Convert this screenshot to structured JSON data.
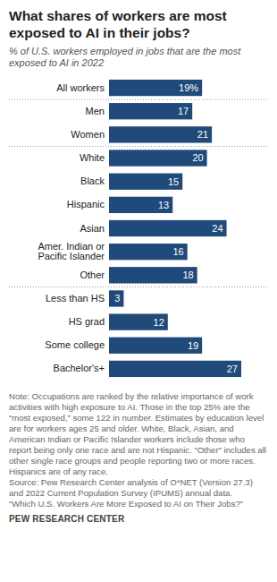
{
  "chart_data": {
    "type": "bar",
    "orientation": "horizontal",
    "title": "What shares of workers are most exposed to AI in their jobs?",
    "subtitle": "% of U.S. workers employed in jobs that are the most exposed to AI in 2022",
    "categories": [
      "All workers",
      "Men",
      "Women",
      "White",
      "Black",
      "Hispanic",
      "Asian",
      "Amer. Indian or\nPacific Islander",
      "Other",
      "Less than HS",
      "HS grad",
      "Some college",
      "Bachelor's+"
    ],
    "values": [
      19,
      17,
      21,
      20,
      15,
      13,
      24,
      16,
      18,
      3,
      12,
      19,
      27
    ],
    "value_labels": [
      "19%",
      "17",
      "21",
      "20",
      "15",
      "13",
      "24",
      "16",
      "18",
      "3",
      "12",
      "19",
      "27"
    ],
    "color": "#1f4a7a",
    "xlim": [
      0,
      27
    ],
    "data_labels": true,
    "tick_labels": "y",
    "note": "Note: Occupations are ranked by the relative importance of work activities with high exposure to AI. Those in the top 25% are the “most exposed,” some 122 in number. Estimates by education level are for workers ages 25 and older. White, Black, Asian, and American Indian or Pacific Islander workers include those who report being only one race and are not Hispanic. “Other” includes all other single race groups and people reporting two or more races. Hispanics are of any race.",
    "source": [
      "Source: Pew Research Center analysis of O*NET (Version 27.3) and 2022 Current Population Survey (IPUMS) annual data.",
      "“Which U.S. Workers Are More Exposed to AI on Their Jobs?”"
    ],
    "credit": "PEW RESEARCH CENTER"
  }
}
